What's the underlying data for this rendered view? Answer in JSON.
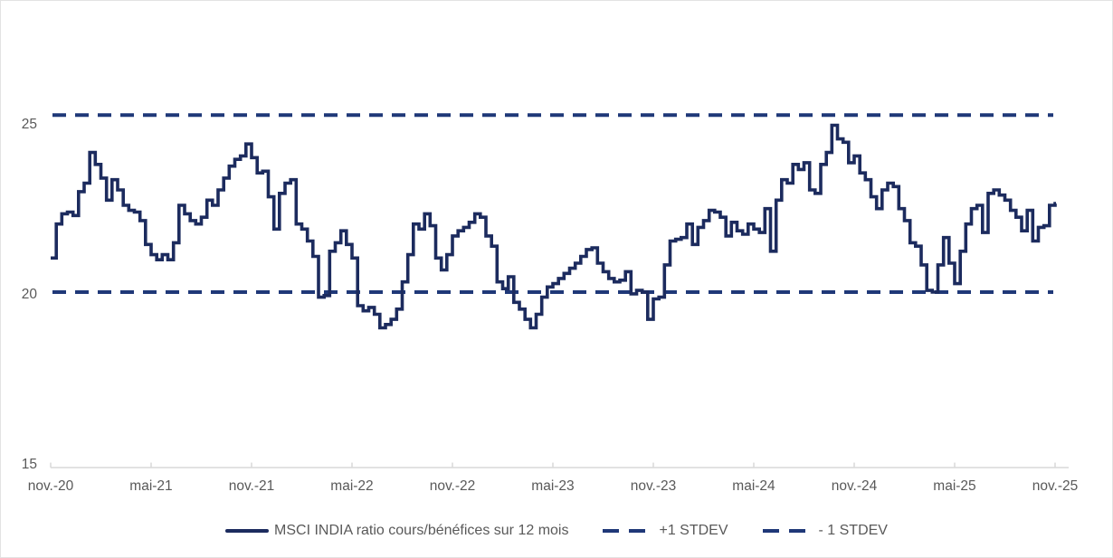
{
  "window": {
    "background": "#ffffff",
    "border_color": "#e3e3e3"
  },
  "colors": {
    "line_navy": "#1c2b5e",
    "dashed_navy": "#1f3878",
    "axis_text": "#595959",
    "axis_line": "#d9d9d9"
  },
  "chart_data": {
    "type": "line",
    "title": "",
    "xlabel": "",
    "ylabel": "",
    "grid": "off",
    "legend_position": "bottom-center",
    "x_axis": {
      "tick_labels": [
        "nov.-20",
        "mai-21",
        "nov.-21",
        "mai-22",
        "nov.-22",
        "mai-23",
        "nov.-23",
        "mai-24",
        "nov.-24",
        "mai-25",
        "nov.-25"
      ]
    },
    "y_axis": {
      "tick_labels": [
        "15",
        "20",
        "25"
      ],
      "tick_values": [
        15,
        20,
        25
      ],
      "ylim": [
        15,
        27.5
      ]
    },
    "series": [
      {
        "name": "MSCI INDIA ratio cours/bénéfices sur 12 mois",
        "style": "solid-step",
        "color": "#1c2b5e",
        "x_start": "nov.-20",
        "x_end": "nov.-25",
        "values": [
          21.1,
          22.1,
          22.4,
          22.45,
          22.35,
          23.05,
          23.3,
          24.2,
          23.85,
          23.45,
          22.8,
          23.4,
          23.1,
          22.65,
          22.5,
          22.45,
          22.2,
          21.5,
          21.2,
          21.05,
          21.2,
          21.05,
          21.55,
          22.65,
          22.4,
          22.2,
          22.1,
          22.3,
          22.8,
          22.65,
          23.1,
          23.45,
          23.8,
          24.0,
          24.1,
          24.45,
          24.05,
          23.6,
          23.65,
          22.9,
          21.95,
          23.0,
          23.3,
          23.4,
          22.1,
          21.95,
          21.6,
          21.15,
          19.95,
          20.0,
          21.3,
          21.55,
          21.9,
          21.5,
          21.1,
          19.7,
          19.55,
          19.65,
          19.45,
          19.05,
          19.15,
          19.3,
          19.6,
          20.4,
          21.2,
          22.1,
          21.95,
          22.4,
          22.05,
          21.1,
          20.75,
          21.2,
          21.75,
          21.9,
          22.0,
          22.15,
          22.4,
          22.3,
          21.75,
          21.45,
          20.4,
          20.2,
          20.55,
          19.8,
          19.6,
          19.3,
          19.05,
          19.45,
          19.95,
          20.25,
          20.35,
          20.5,
          20.65,
          20.8,
          20.95,
          21.15,
          21.35,
          21.4,
          20.95,
          20.7,
          20.5,
          20.4,
          20.45,
          20.7,
          20.05,
          20.15,
          20.1,
          19.3,
          19.9,
          19.95,
          20.9,
          21.6,
          21.65,
          21.7,
          22.1,
          21.5,
          22.0,
          22.2,
          22.5,
          22.45,
          22.3,
          21.75,
          22.15,
          21.9,
          21.8,
          22.1,
          21.95,
          21.85,
          22.55,
          21.3,
          22.8,
          23.4,
          23.3,
          23.85,
          23.7,
          23.9,
          23.1,
          23.0,
          23.85,
          24.2,
          25.0,
          24.6,
          24.5,
          23.9,
          24.1,
          23.6,
          23.4,
          22.9,
          22.55,
          23.1,
          23.3,
          23.2,
          22.55,
          22.2,
          21.55,
          21.45,
          20.9,
          20.15,
          20.1,
          20.9,
          21.7,
          20.95,
          20.35,
          21.3,
          22.1,
          22.55,
          22.65,
          21.85,
          23.0,
          23.1,
          22.95,
          22.8,
          22.5,
          22.3,
          21.9,
          22.5,
          21.6,
          22.0,
          22.05,
          22.65,
          22.7
        ]
      },
      {
        "name": "+1 STDEV",
        "style": "dashed",
        "color": "#1f3878",
        "value": 25.3
      },
      {
        "name": "- 1 STDEV",
        "style": "dashed",
        "color": "#1f3878",
        "value": 20.1
      }
    ]
  }
}
